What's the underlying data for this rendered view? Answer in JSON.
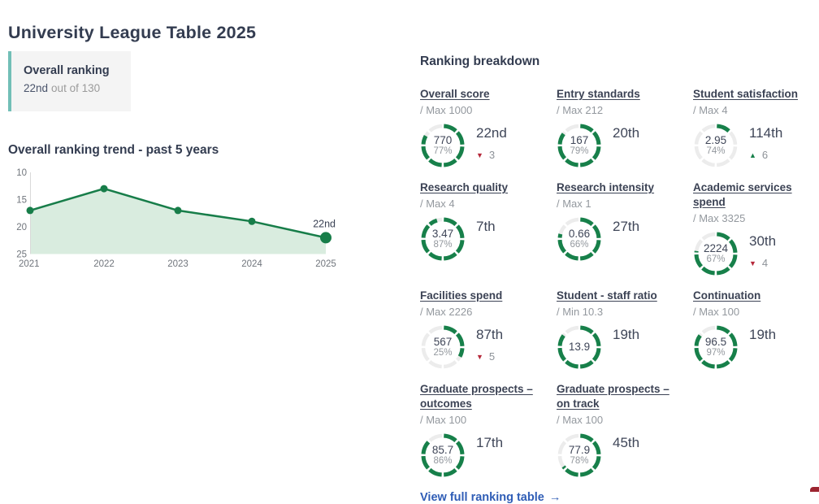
{
  "page": {
    "title": "University League Table 2025",
    "green": "#17804a",
    "teal_accent": "#72bfb7",
    "link_color": "#2f5db6"
  },
  "overall_card": {
    "title": "Overall ranking",
    "rank": "22nd",
    "suffix": "out of 130"
  },
  "trend": {
    "title": "Overall ranking trend - past 5 years"
  },
  "chart_data": {
    "type": "line",
    "title": "Overall ranking trend - past 5 years",
    "x": [
      2021,
      2022,
      2023,
      2024,
      2025
    ],
    "values": [
      17,
      13,
      17,
      19,
      22
    ],
    "y_ticks": [
      10,
      15,
      20,
      25
    ],
    "ylim": [
      10,
      25
    ],
    "y_inverted": true,
    "grid": false,
    "line_color": "#177d49",
    "area_color": "#d9ecdf",
    "axis_color": "#d9d9d9",
    "tick_color": "#70757c",
    "annotation": {
      "x": 2025,
      "label": "22nd"
    }
  },
  "icons": {
    "up_glyph": "▲",
    "down_glyph": "▼",
    "arrow_glyph": "→"
  },
  "breakdown": {
    "title": "Ranking breakdown",
    "metrics": [
      {
        "name": "Overall score",
        "max_label": "/ Max 1000",
        "value": "770",
        "pct": "77%",
        "rank": "22nd",
        "change": {
          "dir": "down",
          "amount": "3"
        },
        "ring_fill": 0.83
      },
      {
        "name": "Entry standards",
        "max_label": "/ Max 212",
        "value": "167",
        "pct": "79%",
        "rank": "20th",
        "change": null,
        "ring_fill": 0.85
      },
      {
        "name": "Student satisfaction",
        "max_label": "/ Max 4",
        "value": "2.95",
        "pct": "74%",
        "rank": "114th",
        "change": {
          "dir": "up",
          "amount": "6"
        },
        "ring_fill": 0.13
      },
      {
        "name": "Research quality",
        "max_label": "/ Max 4",
        "value": "3.47",
        "pct": "87%",
        "rank": "7th",
        "change": null,
        "ring_fill": 0.95
      },
      {
        "name": "Research intensity",
        "max_label": "/ Max 1",
        "value": "0.66",
        "pct": "66%",
        "rank": "27th",
        "change": null,
        "ring_fill": 0.79
      },
      {
        "name": "Academic services spend",
        "max_label": "/ Max 3325",
        "value": "2224",
        "pct": "67%",
        "rank": "30th",
        "change": {
          "dir": "down",
          "amount": "4"
        },
        "ring_fill": 0.77
      },
      {
        "name": "Facilities spend",
        "max_label": "/ Max 2226",
        "value": "567",
        "pct": "25%",
        "rank": "87th",
        "change": {
          "dir": "down",
          "amount": "5"
        },
        "ring_fill": 0.33
      },
      {
        "name": "Student - staff ratio",
        "max_label": "/ Min 10.3",
        "value": "13.9",
        "pct": "",
        "rank": "19th",
        "change": null,
        "ring_fill": 0.85
      },
      {
        "name": "Continuation",
        "max_label": "/ Max 100",
        "value": "96.5",
        "pct": "97%",
        "rank": "19th",
        "change": null,
        "ring_fill": 0.85
      },
      {
        "name": "Graduate prospects – outcomes",
        "max_label": "/ Max 100",
        "value": "85.7",
        "pct": "86%",
        "rank": "17th",
        "change": null,
        "ring_fill": 0.87
      },
      {
        "name": "Graduate prospects – on track",
        "max_label": "/ Max 100",
        "value": "77.9",
        "pct": "78%",
        "rank": "45th",
        "change": null,
        "ring_fill": 0.65
      }
    ],
    "link_label": "View full ranking table"
  }
}
